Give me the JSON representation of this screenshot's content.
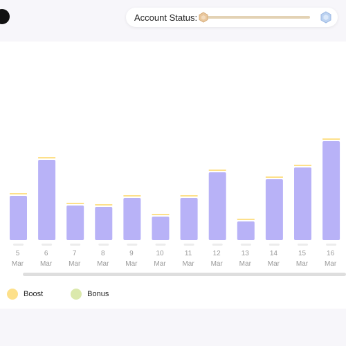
{
  "header": {
    "status_label": "Account Status:",
    "slider_value": 0.0,
    "thumb_icon": "bronze-hexagon-icon",
    "end_icon": "diamond-hexagon-icon"
  },
  "chart_data": {
    "type": "bar",
    "categories": [
      {
        "day": "5",
        "month": "Mar"
      },
      {
        "day": "6",
        "month": "Mar"
      },
      {
        "day": "7",
        "month": "Mar"
      },
      {
        "day": "8",
        "month": "Mar"
      },
      {
        "day": "9",
        "month": "Mar"
      },
      {
        "day": "10",
        "month": "Mar"
      },
      {
        "day": "11",
        "month": "Mar"
      },
      {
        "day": "12",
        "month": "Mar"
      },
      {
        "day": "13",
        "month": "Mar"
      },
      {
        "day": "14",
        "month": "Mar"
      },
      {
        "day": "15",
        "month": "Mar"
      },
      {
        "day": "16",
        "month": "Mar"
      }
    ],
    "values": [
      64,
      116,
      50,
      48,
      61,
      34,
      61,
      98,
      27,
      88,
      105,
      143
    ],
    "series_colors": {
      "main": "#b8b2f7",
      "boost": "#fde08a",
      "bonus": "#dbe9ac"
    }
  },
  "legend": [
    {
      "label": "Boost",
      "color": "#fde08a"
    },
    {
      "label": "Bonus",
      "color": "#dbe9ac"
    }
  ]
}
